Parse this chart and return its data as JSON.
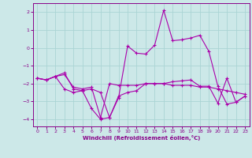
{
  "xlabel": "Windchill (Refroidissement éolien,°C)",
  "bg_color": "#cce8e8",
  "grid_color": "#aad4d4",
  "line_color": "#aa00aa",
  "xlim": [
    -0.5,
    23.5
  ],
  "ylim": [
    -4.4,
    2.5
  ],
  "yticks": [
    -4,
    -3,
    -2,
    -1,
    0,
    1,
    2
  ],
  "xticks": [
    0,
    1,
    2,
    3,
    4,
    5,
    6,
    7,
    8,
    9,
    10,
    11,
    12,
    13,
    14,
    15,
    16,
    17,
    18,
    19,
    20,
    21,
    22,
    23
  ],
  "line1_x": [
    0,
    1,
    2,
    3,
    4,
    5,
    6,
    7,
    8,
    9,
    10,
    11,
    12,
    13,
    14,
    15,
    16,
    17,
    18,
    19,
    20,
    21,
    22,
    23
  ],
  "line1_y": [
    -1.7,
    -1.8,
    -1.6,
    -1.5,
    -2.2,
    -2.3,
    -2.2,
    -3.9,
    -2.0,
    -2.1,
    -2.1,
    -2.1,
    -2.0,
    -2.0,
    -2.0,
    -2.1,
    -2.1,
    -2.1,
    -2.2,
    -2.2,
    -2.3,
    -2.4,
    -2.5,
    -2.6
  ],
  "line2_x": [
    0,
    1,
    2,
    3,
    4,
    5,
    6,
    7,
    8,
    9,
    10,
    11,
    12,
    13,
    14,
    15,
    16,
    17,
    18,
    19,
    20,
    21,
    22,
    23
  ],
  "line2_y": [
    -1.7,
    -1.8,
    -1.6,
    -2.3,
    -2.5,
    -2.4,
    -2.3,
    -2.5,
    -3.9,
    -2.7,
    -2.5,
    -2.4,
    -2.0,
    -2.0,
    -2.0,
    -1.9,
    -1.85,
    -1.8,
    -2.15,
    -2.15,
    -3.1,
    -1.7,
    -3.05,
    -2.7
  ],
  "line3_x": [
    0,
    1,
    2,
    3,
    4,
    5,
    6,
    7,
    8,
    9,
    10,
    11,
    12,
    13,
    14,
    15,
    16,
    17,
    18,
    19,
    20,
    21,
    22,
    23
  ],
  "line3_y": [
    -1.7,
    -1.8,
    -1.6,
    -1.4,
    -2.3,
    -2.4,
    -3.4,
    -4.0,
    -3.9,
    -2.8,
    0.1,
    -0.3,
    -0.35,
    0.15,
    2.1,
    0.4,
    0.45,
    0.55,
    0.7,
    -0.2,
    -2.15,
    -3.15,
    -3.05,
    -2.7
  ]
}
